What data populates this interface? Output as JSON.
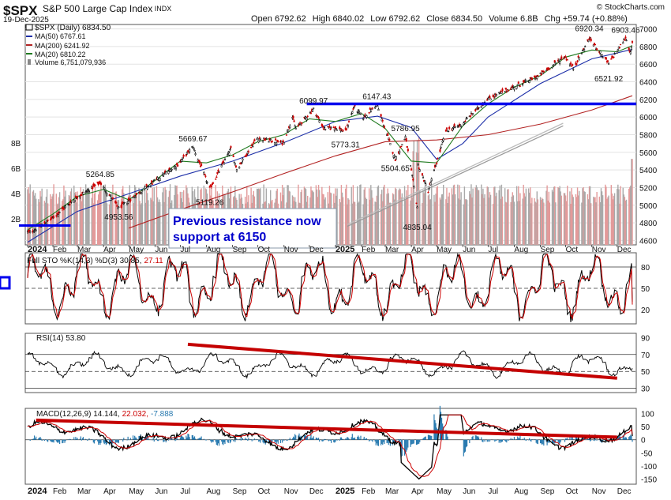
{
  "header": {
    "symbol": "$SPX",
    "name": "S&P 500 Large Cap Index",
    "exchange": "INDX",
    "date": "19-Dec-2025",
    "brand": "© StockCharts.com",
    "open_label": "Open",
    "open": "6792.62",
    "high_label": "High",
    "high": "6840.02",
    "low_label": "Low",
    "low": "6792.62",
    "close_label": "Close",
    "close": "6834.50",
    "volume_label": "Volume",
    "volume": "6.8B",
    "chg_label": "Chg",
    "chg": "+59.74 (+0.88%)"
  },
  "legend": {
    "main": "$SPX (Daily) 6834.50",
    "ma50": "MA(50) 6767.61",
    "ma200": "MA(200) 6241.92",
    "ma20": "MA(20) 6810.22",
    "volume": "Volume 6,751,079,936"
  },
  "colors": {
    "candle_up": "#000000",
    "candle_down": "#cc0000",
    "ma50": "#1c2ea8",
    "ma200": "#b22222",
    "ma20": "#1f7a1f",
    "volume_up": "#a9a9a9",
    "volume_down": "#e39a9a",
    "resistance": "#0000ee",
    "trendline": "#c40000",
    "macd_hist": "#2a7bb0",
    "support_line": "#999999",
    "annotation": "#0000cc"
  },
  "annotations": {
    "callout_line1": "Previous resistance now",
    "callout_line2": "support at 6150",
    "resistance_level": 6150,
    "peak_labels": [
      {
        "text": "5264.85",
        "date": "2024-03-28",
        "value": 5264.85,
        "pos": "above"
      },
      {
        "text": "4953.56",
        "date": "2024-04-19",
        "value": 4953.56,
        "pos": "below"
      },
      {
        "text": "5669.67",
        "date": "2024-07-16",
        "value": 5669.67,
        "pos": "above"
      },
      {
        "text": "5119.26",
        "date": "2024-08-05",
        "value": 5119.26,
        "pos": "below"
      },
      {
        "text": "6099.97",
        "date": "2024-12-06",
        "value": 6099.97,
        "pos": "above"
      },
      {
        "text": "5773.31",
        "date": "2025-01-13",
        "value": 5773.31,
        "pos": "below"
      },
      {
        "text": "6147.43",
        "date": "2025-02-19",
        "value": 6147.43,
        "pos": "above"
      },
      {
        "text": "5786.95",
        "date": "2025-03-25",
        "value": 5786.95,
        "pos": "above"
      },
      {
        "text": "5504.65",
        "date": "2025-03-13",
        "value": 5504.65,
        "pos": "below"
      },
      {
        "text": "4835.04",
        "date": "2025-04-08",
        "value": 4835.04,
        "pos": "below"
      },
      {
        "text": "6920.34",
        "date": "2025-10-29",
        "value": 6920.34,
        "pos": "above"
      },
      {
        "text": "6521.92",
        "date": "2025-11-21",
        "value": 6521.92,
        "pos": "below"
      },
      {
        "text": "6903.46",
        "date": "2025-12-11",
        "value": 6903.46,
        "pos": "above"
      }
    ]
  },
  "chart_data": [
    {
      "type": "candlestick",
      "title": "$SPX (Daily) 6834.50",
      "x_range": [
        "2024-01-02",
        "2025-12-19"
      ],
      "ylim": [
        4550,
        7050
      ],
      "y_ticks": [
        4600,
        4800,
        5000,
        5200,
        5400,
        5600,
        5800,
        6000,
        6200,
        6400,
        6600,
        6800,
        7000
      ],
      "volume_ticks": [
        "2B",
        "4B",
        "6B",
        "8B"
      ],
      "volume_ylim": [
        0,
        10
      ],
      "grid": true,
      "legend_placement": "top-left",
      "x_labels": [
        {
          "text": "2024",
          "date": "2024-01-02",
          "bold": true
        },
        {
          "text": "Feb",
          "date": "2024-02-01"
        },
        {
          "text": "Mar",
          "date": "2024-03-01"
        },
        {
          "text": "Apr",
          "date": "2024-04-01"
        },
        {
          "text": "May",
          "date": "2024-05-01"
        },
        {
          "text": "Jun",
          "date": "2024-06-01"
        },
        {
          "text": "Jul",
          "date": "2024-07-01"
        },
        {
          "text": "Aug",
          "date": "2024-08-01"
        },
        {
          "text": "Sep",
          "date": "2024-09-01"
        },
        {
          "text": "Oct",
          "date": "2024-10-01"
        },
        {
          "text": "Nov",
          "date": "2024-11-01"
        },
        {
          "text": "Dec",
          "date": "2024-12-01"
        },
        {
          "text": "2025",
          "date": "2025-01-01",
          "bold": true
        },
        {
          "text": "Feb",
          "date": "2025-02-01"
        },
        {
          "text": "Mar",
          "date": "2025-03-01"
        },
        {
          "text": "Apr",
          "date": "2025-04-01"
        },
        {
          "text": "May",
          "date": "2025-05-01"
        },
        {
          "text": "Jun",
          "date": "2025-06-01"
        },
        {
          "text": "Jul",
          "date": "2025-07-01"
        },
        {
          "text": "Aug",
          "date": "2025-08-01"
        },
        {
          "text": "Sep",
          "date": "2025-09-01"
        },
        {
          "text": "Oct",
          "date": "2025-10-01"
        },
        {
          "text": "Nov",
          "date": "2025-11-01"
        },
        {
          "text": "Dec",
          "date": "2025-12-01"
        }
      ],
      "price_path": [
        [
          "2024-01-02",
          4700
        ],
        [
          "2024-01-05",
          4690
        ],
        [
          "2024-01-31",
          4850
        ],
        [
          "2024-02-29",
          5090
        ],
        [
          "2024-03-28",
          5254
        ],
        [
          "2024-04-19",
          4967
        ],
        [
          "2024-05-31",
          5270
        ],
        [
          "2024-06-28",
          5460
        ],
        [
          "2024-07-16",
          5667
        ],
        [
          "2024-08-05",
          5186
        ],
        [
          "2024-08-30",
          5640
        ],
        [
          "2024-09-06",
          5408
        ],
        [
          "2024-09-30",
          5760
        ],
        [
          "2024-10-31",
          5705
        ],
        [
          "2024-11-11",
          6001
        ],
        [
          "2024-11-15",
          5870
        ],
        [
          "2024-12-06",
          6090
        ],
        [
          "2024-12-18",
          5872
        ],
        [
          "2024-12-31",
          5882
        ],
        [
          "2025-01-13",
          5836
        ],
        [
          "2025-01-23",
          6118
        ],
        [
          "2025-02-03",
          5995
        ],
        [
          "2025-02-19",
          6144
        ],
        [
          "2025-03-13",
          5521
        ],
        [
          "2025-03-25",
          5776
        ],
        [
          "2025-04-08",
          4982
        ],
        [
          "2025-04-09",
          5457
        ],
        [
          "2025-04-21",
          5158
        ],
        [
          "2025-05-12",
          5844
        ],
        [
          "2025-05-30",
          5912
        ],
        [
          "2025-06-30",
          6205
        ],
        [
          "2025-07-31",
          6339
        ],
        [
          "2025-08-29",
          6460
        ],
        [
          "2025-09-30",
          6688
        ],
        [
          "2025-10-10",
          6553
        ],
        [
          "2025-10-29",
          6890
        ],
        [
          "2025-11-21",
          6603
        ],
        [
          "2025-12-11",
          6901
        ],
        [
          "2025-12-17",
          6721
        ],
        [
          "2025-12-19",
          6834.5
        ]
      ],
      "ma_path": [
        {
          "name": "MA(50) 6767.61",
          "color_key": "ma50",
          "points": [
            [
              "2024-01-02",
              4580
            ],
            [
              "2024-03-01",
              4930
            ],
            [
              "2024-05-01",
              5130
            ],
            [
              "2024-07-01",
              5330
            ],
            [
              "2024-09-01",
              5500
            ],
            [
              "2024-11-01",
              5710
            ],
            [
              "2025-01-01",
              5950
            ],
            [
              "2025-02-20",
              6010
            ],
            [
              "2025-04-01",
              5880
            ],
            [
              "2025-05-01",
              5520
            ],
            [
              "2025-06-01",
              5700
            ],
            [
              "2025-07-01",
              6000
            ],
            [
              "2025-09-01",
              6380
            ],
            [
              "2025-11-01",
              6660
            ],
            [
              "2025-12-19",
              6768
            ]
          ]
        },
        {
          "name": "MA(200) 6241.92",
          "color_key": "ma200",
          "points": [
            [
              "2024-05-01",
              4740
            ],
            [
              "2024-07-01",
              4950
            ],
            [
              "2024-09-01",
              5150
            ],
            [
              "2024-11-01",
              5360
            ],
            [
              "2025-01-01",
              5560
            ],
            [
              "2025-03-01",
              5720
            ],
            [
              "2025-05-01",
              5740
            ],
            [
              "2025-07-01",
              5800
            ],
            [
              "2025-09-01",
              5920
            ],
            [
              "2025-11-01",
              6080
            ],
            [
              "2025-12-19",
              6242
            ]
          ]
        },
        {
          "name": "MA(20) 6810.22",
          "color_key": "ma20",
          "points": [
            [
              "2024-01-02",
              4720
            ],
            [
              "2024-02-01",
              4900
            ],
            [
              "2024-03-01",
              5100
            ],
            [
              "2024-04-01",
              5180
            ],
            [
              "2024-05-01",
              5060
            ],
            [
              "2024-06-01",
              5280
            ],
            [
              "2024-07-01",
              5500
            ],
            [
              "2024-08-01",
              5480
            ],
            [
              "2024-09-01",
              5570
            ],
            [
              "2024-10-01",
              5720
            ],
            [
              "2024-11-01",
              5800
            ],
            [
              "2024-12-01",
              5980
            ],
            [
              "2025-01-01",
              5950
            ],
            [
              "2025-02-01",
              6040
            ],
            [
              "2025-03-01",
              5870
            ],
            [
              "2025-04-01",
              5500
            ],
            [
              "2025-05-01",
              5480
            ],
            [
              "2025-06-01",
              5900
            ],
            [
              "2025-07-01",
              6150
            ],
            [
              "2025-08-01",
              6340
            ],
            [
              "2025-09-01",
              6470
            ],
            [
              "2025-10-01",
              6680
            ],
            [
              "2025-11-01",
              6760
            ],
            [
              "2025-12-01",
              6740
            ],
            [
              "2025-12-19",
              6810
            ]
          ]
        }
      ]
    },
    {
      "type": "line",
      "title": "Full STO %K(14,3) %D(3) 30.85, 27.11",
      "k_label": "Full STO %K(14,3) %D(3) 30.85,",
      "d_label": "27.11",
      "ylim": [
        0,
        100
      ],
      "y_ticks": [
        20,
        50,
        80
      ],
      "reference_lines": [
        20,
        50,
        80
      ],
      "series": [
        {
          "name": "%K",
          "last": 30.85
        },
        {
          "name": "%D",
          "last": 27.11
        }
      ]
    },
    {
      "type": "line",
      "title": "RSI(14) 53.80",
      "ylim": [
        25,
        95
      ],
      "y_ticks": [
        30,
        50,
        70,
        90
      ],
      "reference_lines": [
        30,
        50,
        70
      ],
      "series": [
        {
          "name": "RSI(14)",
          "last": 53.8
        }
      ],
      "trendline": [
        [
          "2024-07-10",
          82
        ],
        [
          "2025-12-01",
          42
        ]
      ]
    },
    {
      "type": "line",
      "title": "MACD(12,26,9) 14.144, 22.032, -7.888",
      "macd_label": "MACD(12,26,9) 14.144,",
      "signal_label": "22.032,",
      "hist_label": "-7.888",
      "ylim": [
        -170,
        120
      ],
      "y_ticks": [
        -150,
        -100,
        -50,
        0,
        50,
        100
      ],
      "series": [
        {
          "name": "MACD",
          "last": 14.144
        },
        {
          "name": "Signal",
          "last": 22.032
        },
        {
          "name": "Histogram",
          "last": -7.888
        }
      ],
      "trendline": [
        [
          "2024-01-12",
          75
        ],
        [
          "2025-12-01",
          10
        ]
      ],
      "x_labels_ref": 0
    }
  ]
}
